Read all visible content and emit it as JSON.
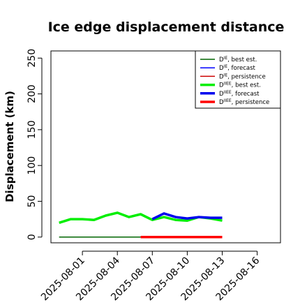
{
  "chart_data": {
    "type": "line",
    "title": "Ice edge displacement distance",
    "xlabel": "",
    "ylabel": "Displacement (km)",
    "x_tick_labels": [
      "2025-08-01",
      "2025-08-04",
      "2025-08-07",
      "2025-08-10",
      "2025-08-13",
      "2025-08-16"
    ],
    "x_tick_days": [
      1,
      4,
      7,
      10,
      13,
      16
    ],
    "highlight_tick": "2025-08-07",
    "highlight_color": "#228b22",
    "xlim_days": [
      -1.7,
      18
    ],
    "y_ticks": [
      0,
      50,
      100,
      150,
      200,
      250
    ],
    "ylim": [
      -8,
      260
    ],
    "grid": false,
    "legend_position": "top-right",
    "series": [
      {
        "name": "D_IE, best est.",
        "legend": {
          "base": "D",
          "sup": "IE",
          "suffix": ", best est."
        },
        "color": "#006400",
        "width": 1.5,
        "points": [
          [
            "2025-07-30",
            0
          ],
          [
            "2025-08-06",
            0
          ]
        ]
      },
      {
        "name": "D_IE, forecast",
        "legend": {
          "base": "D",
          "sup": "IE",
          "suffix": ", forecast"
        },
        "color": "#0000ff",
        "width": 1.5,
        "points": []
      },
      {
        "name": "D_IE, persistence",
        "legend": {
          "base": "D",
          "sup": "IE",
          "suffix": ", persistence"
        },
        "color": "#cc0000",
        "width": 1.5,
        "points": []
      },
      {
        "name": "D_IIEE, best est.",
        "legend": {
          "base": "D",
          "sup": "IIEE",
          "suffix": ", best est."
        },
        "color": "#00ee00",
        "width": 3.5,
        "points": [
          [
            "2025-07-30",
            20
          ],
          [
            "2025-07-31",
            25
          ],
          [
            "2025-08-01",
            25
          ],
          [
            "2025-08-02",
            24
          ],
          [
            "2025-08-03",
            30
          ],
          [
            "2025-08-04",
            34
          ],
          [
            "2025-08-05",
            28
          ],
          [
            "2025-08-06",
            32
          ],
          [
            "2025-08-07",
            24
          ],
          [
            "2025-08-08",
            28
          ],
          [
            "2025-08-09",
            24
          ],
          [
            "2025-08-10",
            23
          ],
          [
            "2025-08-11",
            28
          ],
          [
            "2025-08-12",
            26
          ],
          [
            "2025-08-13",
            23
          ]
        ]
      },
      {
        "name": "D_IIEE, forecast",
        "legend": {
          "base": "D",
          "sup": "IIEE",
          "suffix": ", forecast"
        },
        "color": "#0000ee",
        "width": 3.5,
        "points": [
          [
            "2025-08-07",
            25
          ],
          [
            "2025-08-08",
            33
          ],
          [
            "2025-08-09",
            28
          ],
          [
            "2025-08-10",
            26
          ],
          [
            "2025-08-11",
            28
          ],
          [
            "2025-08-12",
            27
          ],
          [
            "2025-08-13",
            27
          ]
        ]
      },
      {
        "name": "D_IIEE, persistence",
        "legend": {
          "base": "D",
          "sup": "IIEE",
          "suffix": ", persistence"
        },
        "color": "#ff0000",
        "width": 3.5,
        "points": [
          [
            "2025-08-06",
            0
          ],
          [
            "2025-08-13",
            0
          ]
        ]
      }
    ]
  }
}
